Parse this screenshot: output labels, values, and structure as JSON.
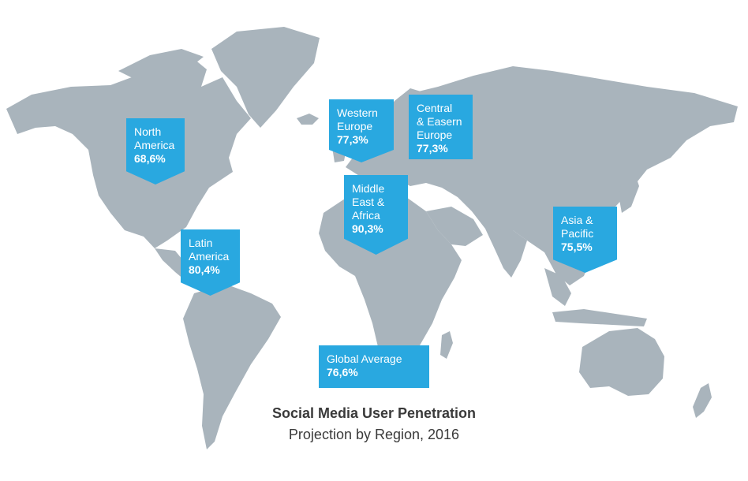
{
  "title": "Social Media User Penetration",
  "subtitle": "Projection by Region, 2016",
  "colors": {
    "land": "#a9b4bc",
    "badge": "#29a8e0",
    "text": "#3a3a3a"
  },
  "regions": [
    {
      "key": "north_america",
      "name_lines": [
        "North",
        "America"
      ],
      "value": "68,6%"
    },
    {
      "key": "western_europe",
      "name_lines": [
        "Western",
        "Europe"
      ],
      "value": "77,3%"
    },
    {
      "key": "central_eastern_europe",
      "name_lines": [
        "Central",
        "& Easern",
        "Europe"
      ],
      "value": "77,3%"
    },
    {
      "key": "middle_east_africa",
      "name_lines": [
        "Middle",
        "East &",
        "Africa"
      ],
      "value": "90,3%"
    },
    {
      "key": "asia_pacific",
      "name_lines": [
        "Asia &",
        "Pacific"
      ],
      "value": "75,5%"
    },
    {
      "key": "latin_america",
      "name_lines": [
        "Latin",
        "America"
      ],
      "value": "80,4%"
    },
    {
      "key": "global_average",
      "name_lines": [
        "Global Average"
      ],
      "value": "76,6%"
    }
  ]
}
